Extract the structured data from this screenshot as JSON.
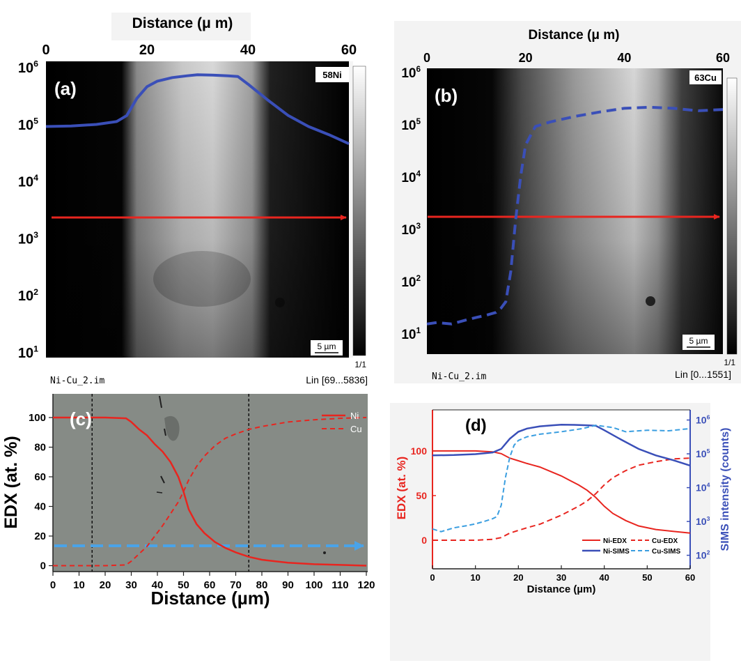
{
  "chart_data": [
    {
      "panel": "a",
      "type": "line",
      "panel_label": "(a)",
      "xlabel": "Distance (μ m)",
      "x_ticks": [
        "0",
        "20",
        "40",
        "60"
      ],
      "xlim": [
        0,
        60
      ],
      "y_ticks": [
        "10^6",
        "10^5",
        "10^4",
        "10^3",
        "10^2",
        "10^1"
      ],
      "ylim": [
        10,
        1000000
      ],
      "y_scale": "log",
      "image_label": "58Ni",
      "scalebar": "5 µm",
      "colorbar_label": "1/1",
      "file_name": "Ni-Cu_2.im",
      "range_text": "Lin [69...5836]",
      "series": [
        {
          "color": "#3a4fb8",
          "style": "solid",
          "x": [
            0,
            5,
            10,
            14,
            16,
            18,
            20,
            22,
            25,
            28,
            30,
            33,
            36,
            38,
            40,
            44,
            48,
            52,
            56,
            60
          ],
          "y": [
            90000,
            92000,
            98000,
            110000,
            140000,
            280000,
            450000,
            560000,
            650000,
            700000,
            730000,
            720000,
            700000,
            680000,
            500000,
            260000,
            140000,
            90000,
            65000,
            45000
          ]
        }
      ],
      "arrow_color": "#e8251f"
    },
    {
      "panel": "b",
      "type": "line",
      "panel_label": "(b)",
      "xlabel": "Distance (μ m)",
      "x_ticks": [
        "0",
        "20",
        "40",
        "60"
      ],
      "xlim": [
        0,
        60
      ],
      "y_ticks": [
        "10^6",
        "10^5",
        "10^4",
        "10^3",
        "10^2",
        "10^1"
      ],
      "ylim": [
        10,
        1000000
      ],
      "y_scale": "log",
      "image_label": "63Cu",
      "scalebar": "5 µm",
      "colorbar_label": "1/1",
      "file_name": "Ni-Cu_2.im",
      "range_text": "Lin [0...1551]",
      "series": [
        {
          "color": "#3a4fb8",
          "style": "dashed",
          "x": [
            0,
            2,
            5,
            8,
            10,
            12,
            14,
            15,
            16,
            17,
            18,
            19,
            20,
            22,
            25,
            30,
            35,
            40,
            45,
            50,
            55,
            60
          ],
          "y": [
            15,
            16,
            15,
            18,
            20,
            22,
            25,
            30,
            40,
            150,
            1500,
            10000,
            40000,
            90000,
            110000,
            140000,
            170000,
            200000,
            210000,
            200000,
            180000,
            190000
          ]
        }
      ],
      "arrow_color": "#e8251f"
    },
    {
      "panel": "c",
      "type": "line",
      "panel_label": "(c)",
      "xlabel": "Distance (µm)",
      "ylabel": "EDX (at. %)",
      "x_ticks": [
        "0",
        "10",
        "20",
        "30",
        "40",
        "50",
        "60",
        "70",
        "80",
        "90",
        "100",
        "110",
        "120"
      ],
      "xlim": [
        0,
        120
      ],
      "y_ticks": [
        "0",
        "20",
        "40",
        "60",
        "80",
        "100"
      ],
      "ylim": [
        -4,
        116
      ],
      "legend": [
        "Ni",
        "Cu"
      ],
      "legend_position": "top-right",
      "series": [
        {
          "name": "Ni",
          "color": "#e8251f",
          "style": "solid",
          "x": [
            0,
            10,
            20,
            28,
            30,
            33,
            36,
            39,
            42,
            45,
            48,
            50,
            52,
            55,
            58,
            62,
            66,
            70,
            75,
            80,
            90,
            100,
            110,
            120
          ],
          "y": [
            100,
            100,
            100,
            99.5,
            97,
            92,
            88,
            82,
            77,
            70,
            60,
            50,
            38,
            28,
            22,
            16,
            12,
            9,
            6,
            4,
            2,
            1,
            0.5,
            0
          ]
        },
        {
          "name": "Cu",
          "color": "#e8251f",
          "style": "dashed",
          "x": [
            0,
            10,
            20,
            28,
            30,
            33,
            36,
            39,
            42,
            45,
            48,
            50,
            52,
            55,
            58,
            62,
            66,
            70,
            75,
            80,
            90,
            100,
            110,
            120
          ],
          "y": [
            0,
            0,
            0,
            0.5,
            3,
            8,
            13,
            20,
            27,
            35,
            43,
            50,
            58,
            67,
            74,
            81,
            86,
            89,
            92,
            94,
            97,
            98.5,
            99.5,
            100
          ]
        }
      ],
      "reference_lines_x": [
        15,
        75
      ],
      "arrow_color": "#4aa3e8"
    },
    {
      "panel": "d",
      "type": "line",
      "panel_label": "(d)",
      "xlabel": "Distance (µm)",
      "ylabel_left": "EDX (at. %)",
      "ylabel_right": "SIMS intensity (counts)",
      "x_ticks": [
        "0",
        "10",
        "20",
        "30",
        "40",
        "50",
        "60"
      ],
      "xlim": [
        0,
        60
      ],
      "y_ticks_left": [
        "0",
        "50",
        "100"
      ],
      "ylim_left": [
        -32,
        146
      ],
      "y_ticks_right": [
        "10^2",
        "10^3",
        "10^4",
        "10^5",
        "10^6"
      ],
      "ylim_right_log": [
        1.6,
        6.3
      ],
      "legend": [
        "Ni-EDX",
        "Cu-EDX",
        "Ni-SIMS",
        "Cu-SIMS"
      ],
      "legend_position": "bottom-right",
      "series": [
        {
          "name": "Ni-EDX",
          "axis": "left",
          "color": "#e8251f",
          "style": "solid",
          "x": [
            0,
            5,
            10,
            14,
            16,
            18,
            20,
            22,
            25,
            28,
            30,
            32,
            34,
            36,
            38,
            40,
            42,
            45,
            48,
            52,
            56,
            60
          ],
          "y": [
            100,
            100,
            100,
            99,
            97,
            92,
            89,
            86,
            82,
            76,
            72,
            67,
            62,
            56,
            48,
            38,
            30,
            22,
            16,
            12,
            10,
            8
          ]
        },
        {
          "name": "Cu-EDX",
          "axis": "left",
          "color": "#e8251f",
          "style": "dashed",
          "x": [
            0,
            5,
            10,
            14,
            16,
            18,
            20,
            22,
            25,
            28,
            30,
            32,
            34,
            36,
            38,
            40,
            42,
            45,
            48,
            52,
            56,
            60
          ],
          "y": [
            0,
            0,
            0,
            1,
            3,
            8,
            11,
            14,
            18,
            24,
            28,
            33,
            38,
            44,
            52,
            62,
            70,
            78,
            84,
            88,
            91,
            92
          ]
        },
        {
          "name": "Ni-SIMS",
          "axis": "right",
          "color": "#3a4fb8",
          "style": "solid",
          "x": [
            0,
            5,
            10,
            14,
            16,
            18,
            20,
            22,
            25,
            28,
            30,
            33,
            36,
            38,
            40,
            44,
            48,
            52,
            56,
            60
          ],
          "y": [
            90000,
            92000,
            98000,
            110000,
            140000,
            280000,
            450000,
            560000,
            650000,
            700000,
            730000,
            720000,
            700000,
            680000,
            500000,
            260000,
            140000,
            90000,
            65000,
            45000
          ]
        },
        {
          "name": "Cu-SIMS",
          "axis": "right",
          "color": "#3a9ee0",
          "style": "dashed",
          "x": [
            0,
            2,
            5,
            8,
            10,
            12,
            14,
            15,
            16,
            17,
            18,
            19,
            20,
            22,
            25,
            30,
            35,
            38,
            42,
            45,
            50,
            55,
            60
          ],
          "y": [
            600,
            500,
            650,
            750,
            850,
            1000,
            1200,
            1400,
            3000,
            20000,
            80000,
            180000,
            250000,
            320000,
            380000,
            450000,
            560000,
            700000,
            600000,
            450000,
            500000,
            480000,
            560000
          ]
        }
      ]
    }
  ]
}
